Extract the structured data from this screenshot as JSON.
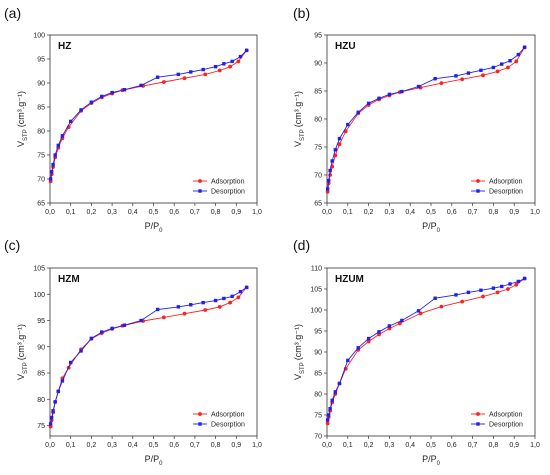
{
  "chart_data": [
    {
      "type": "line",
      "panel_label": "(a)",
      "title": "HZ",
      "xlabel": {
        "main": "P/P",
        "sub": "0"
      },
      "ylabel": {
        "main": "V",
        "sub": "STP",
        "unit": "(cm³.g⁻¹)"
      },
      "xlim": [
        0.0,
        1.0
      ],
      "ylim": [
        65,
        100
      ],
      "xticks": [
        "0,0",
        "0,1",
        "0,2",
        "0,3",
        "0,4",
        "0,5",
        "0,6",
        "0,7",
        "0,8",
        "0,9",
        "1,0"
      ],
      "yticks": [
        "65",
        "70",
        "75",
        "80",
        "85",
        "90",
        "95",
        "100"
      ],
      "legend": "bottom-right",
      "series": [
        {
          "name": "Adsorption",
          "color": "#ff2020",
          "x": [
            0.003,
            0.008,
            0.015,
            0.025,
            0.04,
            0.06,
            0.09,
            0.15,
            0.2,
            0.25,
            0.3,
            0.35,
            0.45,
            0.55,
            0.65,
            0.75,
            0.82,
            0.87,
            0.91,
            0.95
          ],
          "y": [
            69.5,
            71,
            72.5,
            74.5,
            76.5,
            78.5,
            80.8,
            84.2,
            85.8,
            87,
            87.8,
            88.5,
            89.4,
            90.2,
            91,
            91.8,
            92.6,
            93.4,
            94.5,
            96.8
          ]
        },
        {
          "name": "Desorption",
          "color": "#2020ee",
          "x": [
            0.95,
            0.92,
            0.88,
            0.84,
            0.8,
            0.74,
            0.68,
            0.62,
            0.52,
            0.44,
            0.36,
            0.3,
            0.25,
            0.2,
            0.15,
            0.1,
            0.06,
            0.04,
            0.025,
            0.015,
            0.008,
            0.003
          ],
          "y": [
            96.8,
            95.5,
            94.5,
            94,
            93.4,
            92.8,
            92.3,
            91.8,
            91.2,
            89.5,
            88.6,
            88,
            87.2,
            86,
            84.4,
            82,
            79,
            77,
            75,
            73,
            71.5,
            70
          ]
        }
      ]
    },
    {
      "type": "line",
      "panel_label": "(b)",
      "title": "HZU",
      "xlabel": {
        "main": "P/P",
        "sub": "0"
      },
      "ylabel": {
        "main": "V",
        "sub": "STP",
        "unit": "(cm³.g⁻¹)"
      },
      "xlim": [
        0.0,
        1.0
      ],
      "ylim": [
        65,
        95
      ],
      "xticks": [
        "0,0",
        "0,1",
        "0,2",
        "0,3",
        "0,4",
        "0,5",
        "0,6",
        "0,7",
        "0,8",
        "0,9",
        "1,0"
      ],
      "yticks": [
        "65",
        "70",
        "75",
        "80",
        "85",
        "90",
        "95"
      ],
      "legend": "bottom-right",
      "series": [
        {
          "name": "Adsorption",
          "color": "#ff2020",
          "x": [
            0.003,
            0.008,
            0.015,
            0.025,
            0.04,
            0.06,
            0.09,
            0.15,
            0.2,
            0.25,
            0.3,
            0.35,
            0.45,
            0.55,
            0.65,
            0.75,
            0.82,
            0.87,
            0.91,
            0.95
          ],
          "y": [
            67,
            68.5,
            70,
            71.5,
            73.5,
            75.5,
            77.8,
            81,
            82.5,
            83.5,
            84.2,
            84.8,
            85.6,
            86.4,
            87.1,
            87.8,
            88.5,
            89.2,
            90.3,
            92.8
          ]
        },
        {
          "name": "Desorption",
          "color": "#2020ee",
          "x": [
            0.95,
            0.92,
            0.88,
            0.84,
            0.8,
            0.74,
            0.68,
            0.62,
            0.52,
            0.44,
            0.36,
            0.3,
            0.25,
            0.2,
            0.15,
            0.1,
            0.06,
            0.04,
            0.025,
            0.015,
            0.008,
            0.003
          ],
          "y": [
            92.8,
            91.5,
            90.4,
            89.8,
            89.2,
            88.7,
            88.2,
            87.7,
            87.2,
            85.8,
            84.9,
            84.4,
            83.7,
            82.8,
            81.2,
            79,
            76.5,
            74.5,
            72.5,
            70.8,
            69,
            67.5
          ]
        }
      ]
    },
    {
      "type": "line",
      "panel_label": "(c)",
      "title": "HZM",
      "xlabel": {
        "main": "P/P",
        "sub": "0"
      },
      "ylabel": {
        "main": "V",
        "sub": "STP",
        "unit": "(cm³.g⁻¹)"
      },
      "xlim": [
        0.0,
        1.0
      ],
      "ylim": [
        73,
        105
      ],
      "xticks": [
        "0,0",
        "0,1",
        "0,2",
        "0,3",
        "0,4",
        "0,5",
        "0,6",
        "0,7",
        "0,8",
        "0,9",
        "1,0"
      ],
      "yticks": [
        "75",
        "80",
        "85",
        "90",
        "95",
        "100",
        "105"
      ],
      "legend": "bottom-right",
      "series": [
        {
          "name": "Adsorption",
          "color": "#ff2020",
          "x": [
            0.003,
            0.008,
            0.015,
            0.025,
            0.04,
            0.06,
            0.09,
            0.15,
            0.2,
            0.25,
            0.3,
            0.35,
            0.45,
            0.55,
            0.65,
            0.75,
            0.82,
            0.87,
            0.91,
            0.95
          ],
          "y": [
            74.8,
            76,
            77.5,
            79.5,
            81.5,
            84,
            86,
            89.5,
            91.5,
            92.6,
            93.4,
            94,
            94.9,
            95.6,
            96.3,
            97,
            97.6,
            98.4,
            99.4,
            101.3
          ]
        },
        {
          "name": "Desorption",
          "color": "#2020ee",
          "x": [
            0.95,
            0.92,
            0.88,
            0.84,
            0.8,
            0.74,
            0.68,
            0.62,
            0.52,
            0.44,
            0.36,
            0.3,
            0.25,
            0.2,
            0.15,
            0.1,
            0.06,
            0.04,
            0.025,
            0.015,
            0.008,
            0.003
          ],
          "y": [
            101.3,
            100.5,
            99.6,
            99.2,
            98.8,
            98.4,
            98,
            97.6,
            97.1,
            95,
            94.1,
            93.5,
            92.8,
            91.6,
            89.2,
            87,
            83.5,
            81.5,
            79.5,
            77.8,
            76.5,
            75.3
          ]
        }
      ]
    },
    {
      "type": "line",
      "panel_label": "(d)",
      "title": "HZUM",
      "xlabel": {
        "main": "P/P",
        "sub": "0"
      },
      "ylabel": {
        "main": "V",
        "sub": "STP",
        "unit": "(cm³.g⁻¹)"
      },
      "xlim": [
        0.0,
        1.0
      ],
      "ylim": [
        70,
        110
      ],
      "xticks": [
        "0,0",
        "0,1",
        "0,2",
        "0,3",
        "0,4",
        "0,5",
        "0,6",
        "0,7",
        "0,8",
        "0,9",
        "1,0"
      ],
      "yticks": [
        "70",
        "75",
        "80",
        "85",
        "90",
        "95",
        "100",
        "105",
        "110"
      ],
      "legend": "bottom-right",
      "series": [
        {
          "name": "Adsorption",
          "color": "#ff2020",
          "x": [
            0.003,
            0.008,
            0.015,
            0.025,
            0.04,
            0.06,
            0.09,
            0.15,
            0.2,
            0.25,
            0.3,
            0.35,
            0.45,
            0.55,
            0.65,
            0.75,
            0.82,
            0.87,
            0.91,
            0.95
          ],
          "y": [
            73,
            74.5,
            76,
            78,
            80,
            82.5,
            86,
            90.5,
            92.5,
            94.2,
            95.6,
            96.8,
            99.2,
            100.8,
            102,
            103.2,
            104.2,
            105,
            106,
            107.5
          ]
        },
        {
          "name": "Desorption",
          "color": "#2020ee",
          "x": [
            0.95,
            0.92,
            0.88,
            0.84,
            0.8,
            0.74,
            0.68,
            0.62,
            0.52,
            0.44,
            0.36,
            0.3,
            0.25,
            0.2,
            0.15,
            0.1,
            0.06,
            0.04,
            0.025,
            0.015,
            0.008,
            0.003
          ],
          "y": [
            107.5,
            106.8,
            106.2,
            105.6,
            105.2,
            104.7,
            104.2,
            103.6,
            102.8,
            99.8,
            97.5,
            96.2,
            94.8,
            93.2,
            91,
            88,
            82.5,
            80.5,
            78.5,
            76.5,
            75,
            73.8
          ]
        }
      ]
    }
  ]
}
